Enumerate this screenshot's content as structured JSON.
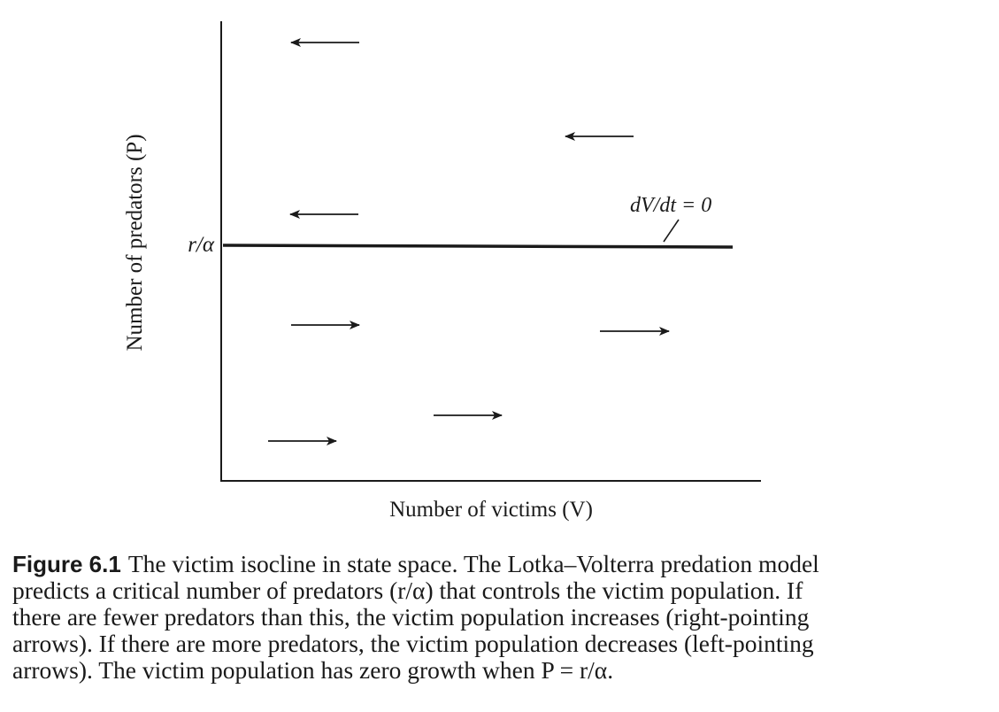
{
  "figure": {
    "axis_x_label": "Number of victims (V)",
    "axis_y_label": "Number of predators (P)",
    "isocline_level_label": "r/α",
    "isocline_label": "dV/dt = 0",
    "arrows": [
      {
        "direction": "left",
        "region": "above"
      },
      {
        "direction": "left",
        "region": "above"
      },
      {
        "direction": "left",
        "region": "above"
      },
      {
        "direction": "right",
        "region": "below"
      },
      {
        "direction": "right",
        "region": "below"
      },
      {
        "direction": "right",
        "region": "below"
      },
      {
        "direction": "right",
        "region": "below"
      }
    ]
  },
  "caption": {
    "label": "Figure 6.1",
    "lines": [
      "The victim isocline in state space. The Lotka–Volterra predation model",
      "predicts a critical number of predators (r/α) that controls the victim population. If",
      "there are fewer predators than this, the victim population increases (right-pointing",
      "arrows). If there are more predators, the victim population decreases (left-pointing",
      "arrows). The victim population has zero growth when P = r/α."
    ]
  }
}
